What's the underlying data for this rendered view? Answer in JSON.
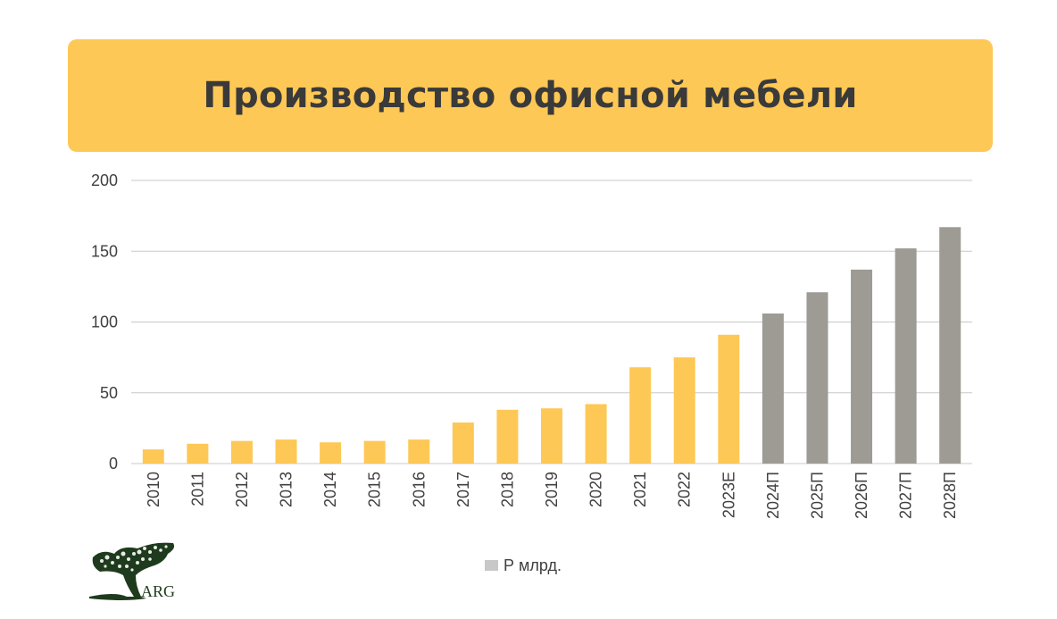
{
  "header": {
    "title": "Производство офисной мебели"
  },
  "colors": {
    "banner": "#fdc855",
    "actual_bar": "#fdc855",
    "forecast_bar": "#9e9a94",
    "gridline": "#c8c8c8",
    "axis_text": "#404040",
    "legend_swatch": "#c8c8c8",
    "logo_green": "#1f3b1d"
  },
  "legend": {
    "label": "Р млрд."
  },
  "logo": {
    "text": "ARG"
  },
  "chart_data": {
    "type": "bar",
    "categories": [
      "2010",
      "2011",
      "2012",
      "2013",
      "2014",
      "2015",
      "2016",
      "2017",
      "2018",
      "2019",
      "2020",
      "2021",
      "2022",
      "2023E",
      "2024П",
      "2025П",
      "2026П",
      "2027П",
      "2028П"
    ],
    "values": [
      10,
      14,
      16,
      17,
      15,
      16,
      17,
      29,
      38,
      39,
      42,
      68,
      75,
      91,
      106,
      121,
      137,
      152,
      167
    ],
    "forecast": [
      false,
      false,
      false,
      false,
      false,
      false,
      false,
      false,
      false,
      false,
      false,
      false,
      false,
      false,
      true,
      true,
      true,
      true,
      true
    ],
    "series": [
      {
        "name": "Р млрд.",
        "values": [
          10,
          14,
          16,
          17,
          15,
          16,
          17,
          29,
          38,
          39,
          42,
          68,
          75,
          91,
          106,
          121,
          137,
          152,
          167
        ]
      }
    ],
    "yticks": [
      "0",
      "50",
      "100",
      "150",
      "200"
    ],
    "ytick_values": [
      0,
      50,
      100,
      150,
      200
    ],
    "ylim": [
      0,
      200
    ],
    "grid": true,
    "legend_position": "bottom",
    "title": "Производство офисной мебели",
    "xlabel": "",
    "ylabel": ""
  }
}
